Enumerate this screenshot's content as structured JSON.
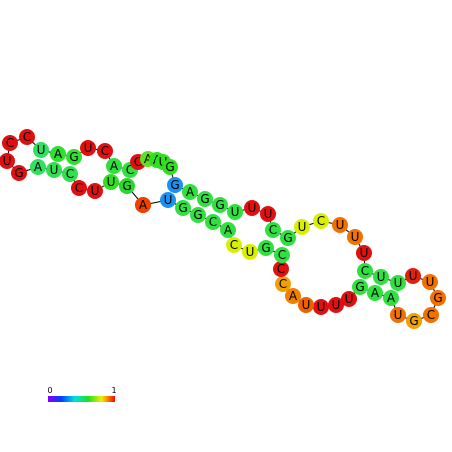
{
  "nodes": [
    {
      "label": "A",
      "color": "#f04000"
    },
    {
      "label": "G",
      "color": "#2ad82a"
    },
    {
      "label": "U",
      "color": "#30e020"
    },
    {
      "label": "U",
      "color": "#e01010"
    },
    {
      "label": "C",
      "color": "#e01010"
    },
    {
      "label": "C",
      "color": "#30e050"
    },
    {
      "label": "U",
      "color": "#30e050"
    },
    {
      "label": "A",
      "color": "#30e060"
    },
    {
      "label": "G",
      "color": "#e01010"
    },
    {
      "label": "U",
      "color": "#e01010"
    },
    {
      "label": "C",
      "color": "#e01010"
    },
    {
      "label": "C",
      "color": "#e01010"
    },
    {
      "label": "U",
      "color": "#30e060"
    },
    {
      "label": "A",
      "color": "#30e030"
    },
    {
      "label": "G",
      "color": "#30e030"
    },
    {
      "label": "U",
      "color": "#e01010"
    },
    {
      "label": "C",
      "color": "#e01010"
    },
    {
      "label": "A",
      "color": "#30e040"
    },
    {
      "label": "C",
      "color": "#30e040"
    },
    {
      "label": "C",
      "color": "#e01010"
    },
    {
      "label": "A",
      "color": "#60e020"
    },
    {
      "label": "A",
      "color": "#30e020"
    },
    {
      "label": "U",
      "color": "#30e020"
    },
    {
      "label": "G",
      "color": "#30e020"
    },
    {
      "label": "G",
      "color": "#1a90f0"
    },
    {
      "label": "A",
      "color": "#30e040"
    },
    {
      "label": "G",
      "color": "#30e040"
    },
    {
      "label": "G",
      "color": "#30e040"
    },
    {
      "label": "U",
      "color": "#30e040"
    },
    {
      "label": "U",
      "color": "#e01010"
    },
    {
      "label": "U",
      "color": "#e01010"
    },
    {
      "label": "C",
      "color": "#30e040"
    },
    {
      "label": "G",
      "color": "#30e040"
    },
    {
      "label": "U",
      "color": "#d8f000"
    },
    {
      "label": "C",
      "color": "#d8f000"
    },
    {
      "label": "U",
      "color": "#f07000"
    },
    {
      "label": "U",
      "color": "#f07000"
    },
    {
      "label": "U",
      "color": "#e01010"
    },
    {
      "label": "C",
      "color": "#30e040"
    },
    {
      "label": "U",
      "color": "#30e040"
    },
    {
      "label": "U",
      "color": "#30e040"
    },
    {
      "label": "U",
      "color": "#e02010"
    },
    {
      "label": "U",
      "color": "#f07000"
    },
    {
      "label": "G",
      "color": "#f07000"
    },
    {
      "label": "C",
      "color": "#f07000"
    },
    {
      "label": "G",
      "color": "#f0a000"
    },
    {
      "label": "U",
      "color": "#f07000"
    },
    {
      "label": "A",
      "color": "#30e040"
    },
    {
      "label": "A",
      "color": "#30e040"
    },
    {
      "label": "G",
      "color": "#30e040"
    },
    {
      "label": "U",
      "color": "#e01010"
    },
    {
      "label": "U",
      "color": "#e01010"
    },
    {
      "label": "U",
      "color": "#e01010"
    },
    {
      "label": "U",
      "color": "#f06000"
    },
    {
      "label": "A",
      "color": "#f08000"
    },
    {
      "label": "C",
      "color": "#f0a000"
    },
    {
      "label": "C",
      "color": "#e01010"
    },
    {
      "label": "C",
      "color": "#30e040"
    },
    {
      "label": "G",
      "color": "#30e040"
    },
    {
      "label": "U",
      "color": "#d8f000"
    },
    {
      "label": "C",
      "color": "#d8f000"
    },
    {
      "label": "A",
      "color": "#30e040"
    },
    {
      "label": "C",
      "color": "#30e040"
    },
    {
      "label": "G",
      "color": "#30e040"
    },
    {
      "label": "G",
      "color": "#30e040"
    },
    {
      "label": "U",
      "color": "#1a90f0"
    },
    {
      "label": "A",
      "color": "#f04000"
    }
  ],
  "colorbar": {
    "min_label": "0",
    "max_label": "1"
  }
}
